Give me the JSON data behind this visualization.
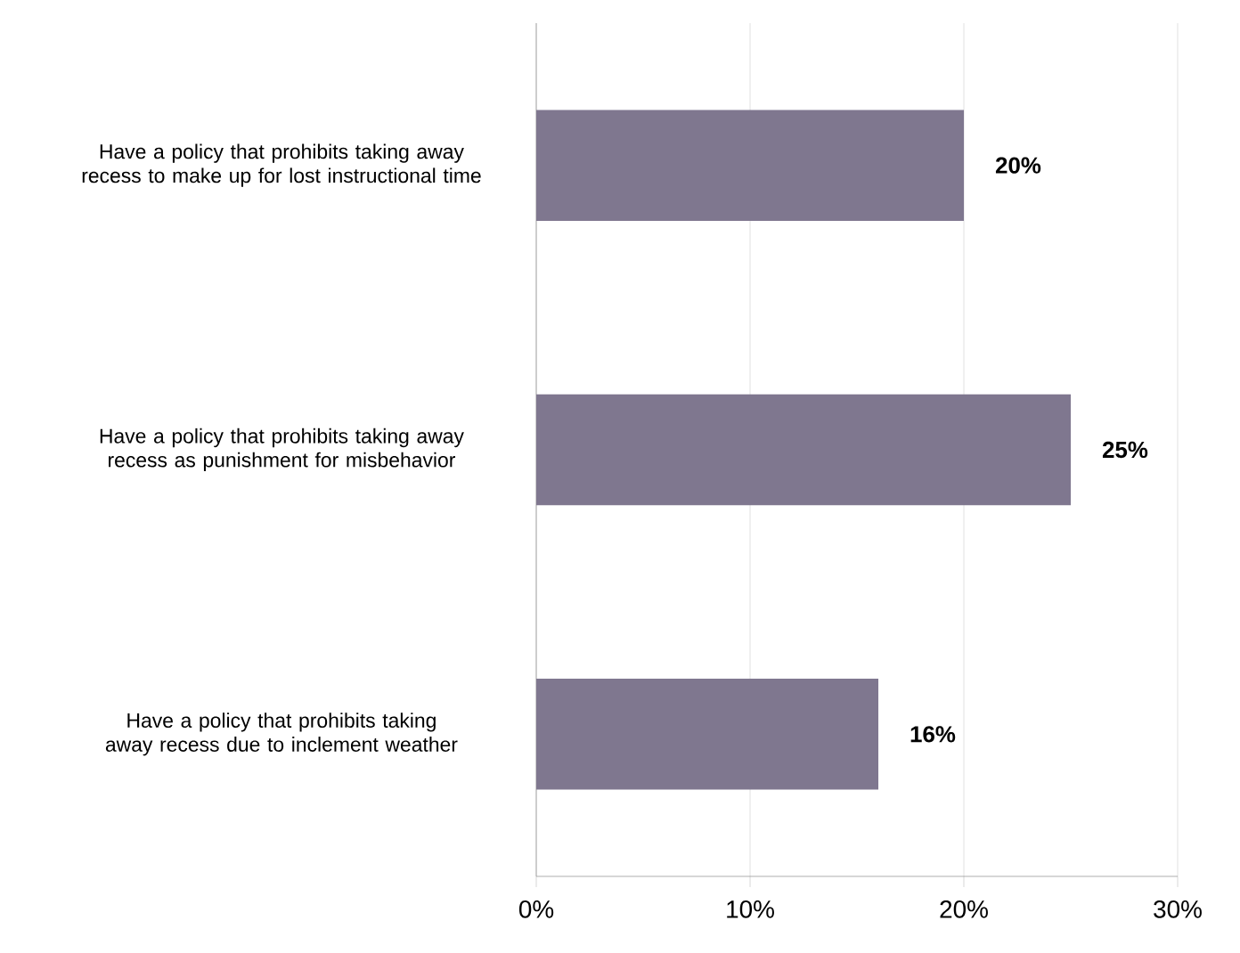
{
  "chart_data": {
    "type": "bar",
    "orientation": "horizontal",
    "categories": [
      "Have a policy that prohibits taking away recess to make up for lost instructional time",
      "Have a policy that prohibits taking away recess as punishment for misbehavior",
      "Have a policy that prohibits taking away recess due to inclement weather"
    ],
    "values": [
      20,
      25,
      16
    ],
    "value_labels": [
      "20%",
      "25%",
      "16%"
    ],
    "color": "#7f778f",
    "xlim": [
      0,
      30
    ],
    "xticks": [
      {
        "value": 0,
        "label": "0%"
      },
      {
        "value": 10,
        "label": "10%"
      },
      {
        "value": 20,
        "label": "20%"
      },
      {
        "value": 30,
        "label": "30%"
      }
    ],
    "grid": "x"
  }
}
